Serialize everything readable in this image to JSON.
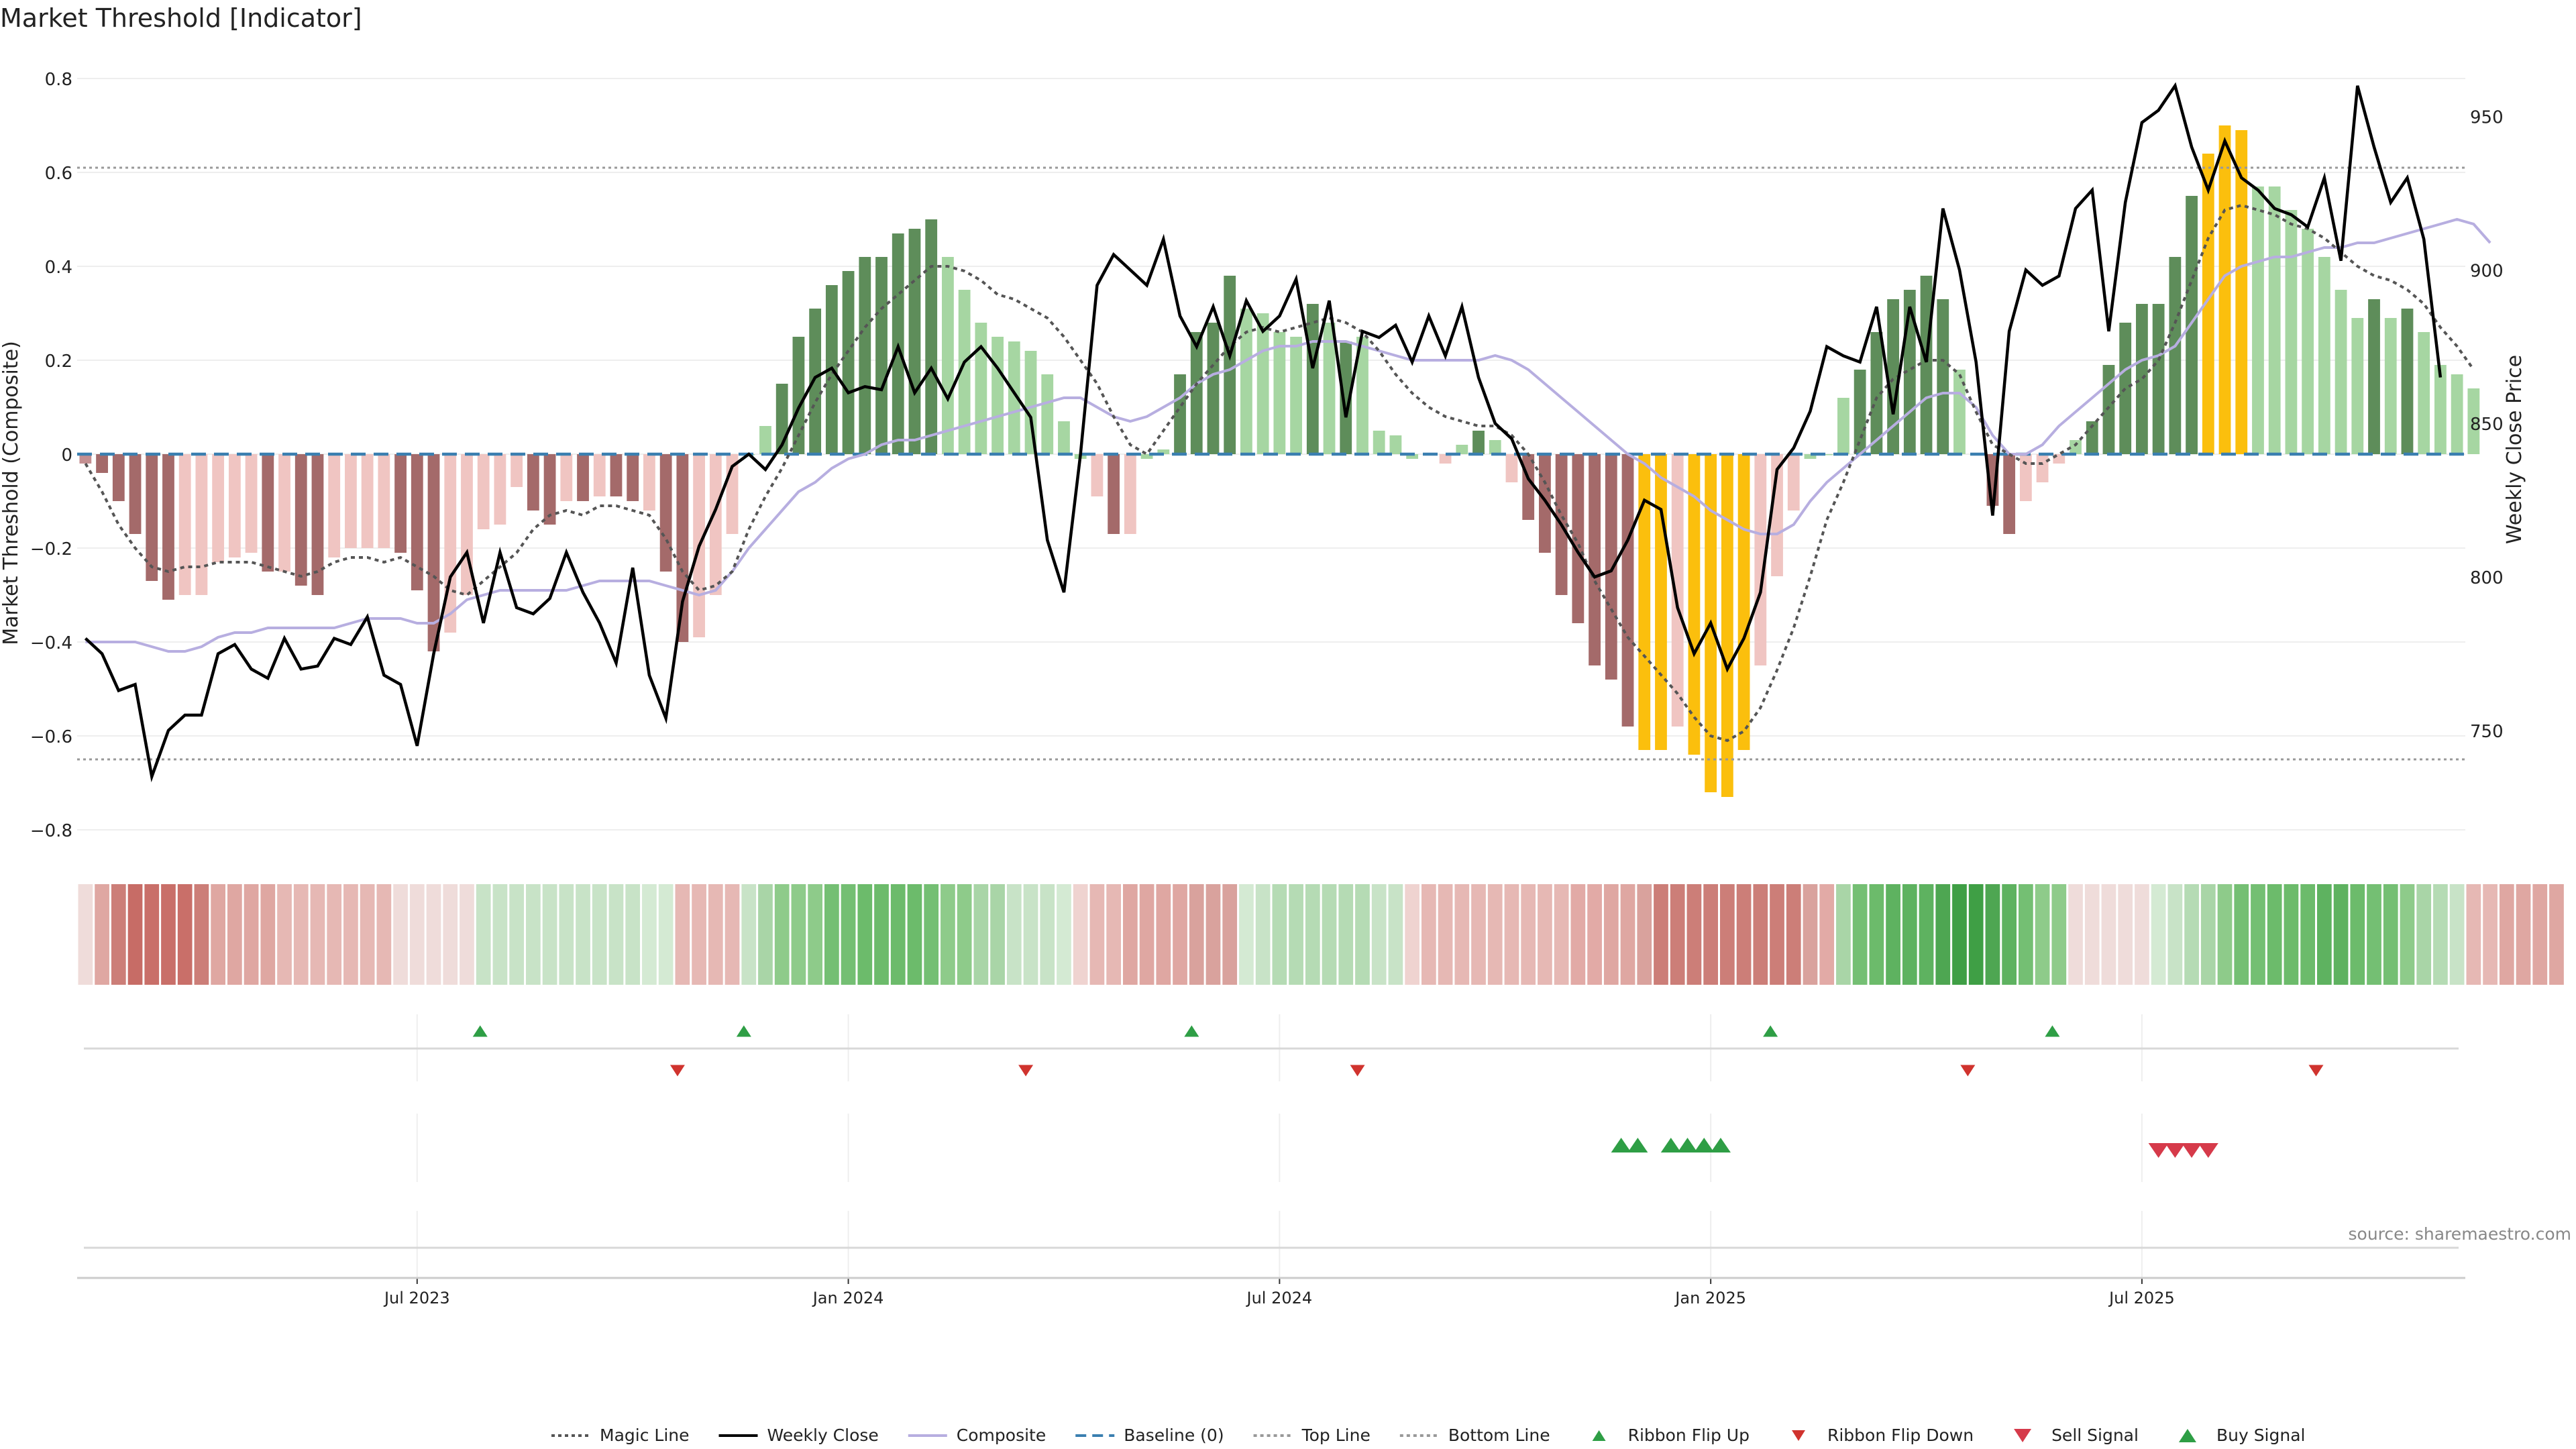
{
  "chart_data": {
    "type": "bar",
    "title": "Market Threshold [Indicator]",
    "ylabel_left": "Market Threshold (Composite)",
    "ylabel_right": "Weekly Close Price",
    "source": "source: sharemaestro.com",
    "ylim_left": [
      -0.85,
      0.85
    ],
    "ylim_right": [
      710,
      970
    ],
    "left_ticks": [
      0.8,
      0.6,
      0.4,
      0.2,
      0,
      -0.2,
      -0.4,
      -0.6,
      -0.8
    ],
    "left_tick_labels": [
      "0.8",
      "0.6",
      "0.4",
      "0.2",
      "0",
      "−0.2",
      "−0.4",
      "−0.6",
      "−0.8"
    ],
    "right_ticks": [
      950,
      900,
      850,
      800,
      750
    ],
    "right_tick_labels": [
      "950",
      "900",
      "850",
      "800",
      "750"
    ],
    "x_range": [
      0,
      144
    ],
    "x_ticks": [
      20.5,
      46.5,
      72.5,
      98.5,
      124.5
    ],
    "x_tick_labels": [
      "Jul 2023",
      "Jan 2024",
      "Jul 2024",
      "Jan 2025",
      "Jul 2025"
    ],
    "top_line": 0.61,
    "bottom_line": -0.65,
    "baseline": 0,
    "composite": [
      -0.02,
      -0.04,
      -0.1,
      -0.17,
      -0.27,
      -0.31,
      -0.3,
      -0.3,
      -0.23,
      -0.22,
      -0.21,
      -0.25,
      -0.25,
      -0.28,
      -0.3,
      -0.22,
      -0.2,
      -0.2,
      -0.2,
      -0.21,
      -0.29,
      -0.42,
      -0.38,
      -0.3,
      -0.16,
      -0.15,
      -0.07,
      -0.12,
      -0.15,
      -0.1,
      -0.1,
      -0.09,
      -0.09,
      -0.1,
      -0.12,
      -0.25,
      -0.4,
      -0.39,
      -0.3,
      -0.17,
      0.0,
      0.06,
      0.15,
      0.25,
      0.31,
      0.36,
      0.39,
      0.42,
      0.42,
      0.47,
      0.48,
      0.5,
      0.42,
      0.35,
      0.28,
      0.25,
      0.24,
      0.22,
      0.17,
      0.07,
      -0.01,
      -0.09,
      -0.17,
      -0.17,
      -0.01,
      0.01,
      0.17,
      0.26,
      0.28,
      0.38,
      0.31,
      0.3,
      0.26,
      0.25,
      0.32,
      0.28,
      0.24,
      0.25,
      0.05,
      0.04,
      -0.01,
      0.0,
      -0.02,
      0.02,
      0.05,
      0.03,
      -0.06,
      -0.14,
      -0.21,
      -0.3,
      -0.36,
      -0.45,
      -0.48,
      -0.58,
      -0.63,
      -0.63,
      -0.58,
      -0.64,
      -0.72,
      -0.73,
      -0.63,
      -0.45,
      -0.26,
      -0.12,
      -0.01,
      0.0,
      0.12,
      0.18,
      0.26,
      0.33,
      0.35,
      0.38,
      0.33,
      0.18,
      0.0,
      -0.11,
      -0.17,
      -0.1,
      -0.06,
      -0.02,
      0.03,
      0.07,
      0.19,
      0.28,
      0.32,
      0.32,
      0.42,
      0.55,
      0.64,
      0.7,
      0.69,
      0.57,
      0.57,
      0.52,
      0.48,
      0.42,
      0.35,
      0.29,
      0.33,
      0.29,
      0.31,
      0.26,
      0.19,
      0.17,
      0.14
    ],
    "bar_colors": [
      "#c48f91",
      "#a46a6a",
      "#a46a6a",
      "#a46a6a",
      "#a46a6a",
      "#a46a6a",
      "#f0c5c2",
      "#f0c5c2",
      "#f0c5c2",
      "#f0c5c2",
      "#f0c5c2",
      "#a46a6a",
      "#f0c5c2",
      "#a46a6a",
      "#a46a6a",
      "#f0c5c2",
      "#f0c5c2",
      "#f0c5c2",
      "#f0c5c2",
      "#a46a6a",
      "#a46a6a",
      "#a46a6a",
      "#f0c5c2",
      "#f0c5c2",
      "#f0c5c2",
      "#f0c5c2",
      "#f0c5c2",
      "#a46a6a",
      "#a46a6a",
      "#f0c5c2",
      "#a46a6a",
      "#f0c5c2",
      "#a46a6a",
      "#a46a6a",
      "#f0c5c2",
      "#a46a6a",
      "#a46a6a",
      "#f0c5c2",
      "#f0c5c2",
      "#f0c5c2",
      "#a6d6a2",
      "#a6d6a2",
      "#5e8d5a",
      "#5e8d5a",
      "#5e8d5a",
      "#5e8d5a",
      "#5e8d5a",
      "#5e8d5a",
      "#5e8d5a",
      "#5e8d5a",
      "#5e8d5a",
      "#5e8d5a",
      "#a6d6a2",
      "#a6d6a2",
      "#a6d6a2",
      "#a6d6a2",
      "#a6d6a2",
      "#a6d6a2",
      "#a6d6a2",
      "#a6d6a2",
      "#a6d6a2",
      "#f0c5c2",
      "#a46a6a",
      "#f0c5c2",
      "#a6d6a2",
      "#a6d6a2",
      "#5e8d5a",
      "#5e8d5a",
      "#5e8d5a",
      "#5e8d5a",
      "#a6d6a2",
      "#a6d6a2",
      "#a6d6a2",
      "#a6d6a2",
      "#5e8d5a",
      "#a6d6a2",
      "#5e8d5a",
      "#a6d6a2",
      "#a6d6a2",
      "#a6d6a2",
      "#a6d6a2",
      "#a6d6a2",
      "#f0c5c2",
      "#a6d6a2",
      "#5e8d5a",
      "#a6d6a2",
      "#f0c5c2",
      "#a46a6a",
      "#a46a6a",
      "#a46a6a",
      "#a46a6a",
      "#a46a6a",
      "#a46a6a",
      "#a46a6a",
      "#fbbf0d",
      "#fbbf0d",
      "#f0c5c2",
      "#fbbf0d",
      "#fbbf0d",
      "#fbbf0d",
      "#fbbf0d",
      "#f0c5c2",
      "#f0c5c2",
      "#f0c5c2",
      "#a6d6a2",
      "#a6d6a2",
      "#a6d6a2",
      "#5e8d5a",
      "#5e8d5a",
      "#5e8d5a",
      "#5e8d5a",
      "#5e8d5a",
      "#5e8d5a",
      "#a6d6a2",
      "#a6d6a2",
      "#a46a6a",
      "#a46a6a",
      "#f0c5c2",
      "#f0c5c2",
      "#f0c5c2",
      "#a6d6a2",
      "#5e8d5a",
      "#5e8d5a",
      "#5e8d5a",
      "#5e8d5a",
      "#5e8d5a",
      "#5e8d5a",
      "#5e8d5a",
      "#fbbf0d",
      "#fbbf0d",
      "#fbbf0d",
      "#a6d6a2",
      "#a6d6a2",
      "#a6d6a2",
      "#a6d6a2",
      "#a6d6a2",
      "#a6d6a2",
      "#a6d6a2",
      "#5e8d5a",
      "#a6d6a2",
      "#5e8d5a",
      "#a6d6a2",
      "#a6d6a2",
      "#a6d6a2",
      "#a6d6a2"
    ],
    "weekly_close": [
      780,
      775,
      763,
      765,
      735,
      750,
      755,
      755,
      775,
      778,
      770,
      767,
      780,
      770,
      771,
      780,
      778,
      787,
      768,
      765,
      745,
      775,
      800,
      808,
      785,
      808,
      790,
      788,
      793,
      808,
      795,
      785,
      772,
      803,
      768,
      754,
      792,
      810,
      822,
      836,
      840,
      835,
      843,
      855,
      865,
      868,
      860,
      862,
      861,
      875,
      860,
      868,
      858,
      870,
      875,
      868,
      860,
      852,
      812,
      795,
      840,
      895,
      905,
      900,
      895,
      910,
      885,
      875,
      888,
      872,
      890,
      880,
      885,
      897,
      868,
      890,
      852,
      880,
      878,
      882,
      870,
      885,
      872,
      888,
      865,
      850,
      845,
      832,
      825,
      817,
      808,
      800,
      802,
      812,
      825,
      822,
      790,
      775,
      785,
      770,
      780,
      795,
      835,
      842,
      854,
      875,
      872,
      870,
      888,
      853,
      888,
      870,
      920,
      900,
      870,
      820,
      880,
      900,
      895,
      898,
      920,
      926,
      880,
      922,
      948,
      952,
      960,
      940,
      926,
      942,
      930,
      926,
      920,
      918,
      914,
      930,
      903,
      960,
      940,
      922,
      930,
      910,
      865
    ],
    "magic_line": [
      -0.02,
      -0.08,
      -0.15,
      -0.2,
      -0.24,
      -0.25,
      -0.24,
      -0.24,
      -0.23,
      -0.23,
      -0.23,
      -0.24,
      -0.25,
      -0.26,
      -0.25,
      -0.23,
      -0.22,
      -0.22,
      -0.23,
      -0.22,
      -0.24,
      -0.26,
      -0.29,
      -0.3,
      -0.27,
      -0.24,
      -0.21,
      -0.16,
      -0.13,
      -0.12,
      -0.13,
      -0.11,
      -0.11,
      -0.12,
      -0.13,
      -0.18,
      -0.25,
      -0.29,
      -0.28,
      -0.25,
      -0.16,
      -0.09,
      -0.03,
      0.04,
      0.11,
      0.17,
      0.22,
      0.27,
      0.31,
      0.34,
      0.37,
      0.4,
      0.4,
      0.39,
      0.37,
      0.34,
      0.33,
      0.31,
      0.29,
      0.25,
      0.2,
      0.15,
      0.08,
      0.02,
      0.0,
      0.05,
      0.1,
      0.15,
      0.19,
      0.23,
      0.26,
      0.27,
      0.26,
      0.27,
      0.28,
      0.29,
      0.28,
      0.26,
      0.22,
      0.17,
      0.13,
      0.1,
      0.08,
      0.07,
      0.06,
      0.06,
      0.04,
      0.0,
      -0.06,
      -0.13,
      -0.19,
      -0.27,
      -0.33,
      -0.39,
      -0.43,
      -0.47,
      -0.51,
      -0.56,
      -0.6,
      -0.61,
      -0.59,
      -0.54,
      -0.46,
      -0.37,
      -0.26,
      -0.14,
      -0.06,
      0.03,
      0.12,
      0.16,
      0.18,
      0.2,
      0.2,
      0.17,
      0.09,
      0.02,
      0.0,
      -0.02,
      -0.02,
      0.0,
      0.02,
      0.06,
      0.1,
      0.14,
      0.16,
      0.2,
      0.28,
      0.37,
      0.46,
      0.52,
      0.53,
      0.52,
      0.51,
      0.49,
      0.48,
      0.46,
      0.43,
      0.4,
      0.38,
      0.37,
      0.35,
      0.32,
      0.27,
      0.23,
      0.18
    ],
    "composite_line": [
      -0.4,
      -0.4,
      -0.4,
      -0.4,
      -0.41,
      -0.42,
      -0.42,
      -0.41,
      -0.39,
      -0.38,
      -0.38,
      -0.37,
      -0.37,
      -0.37,
      -0.37,
      -0.37,
      -0.36,
      -0.35,
      -0.35,
      -0.35,
      -0.36,
      -0.36,
      -0.34,
      -0.31,
      -0.3,
      -0.29,
      -0.29,
      -0.29,
      -0.29,
      -0.29,
      -0.28,
      -0.27,
      -0.27,
      -0.27,
      -0.27,
      -0.28,
      -0.29,
      -0.3,
      -0.29,
      -0.25,
      -0.2,
      -0.16,
      -0.12,
      -0.08,
      -0.06,
      -0.03,
      -0.01,
      0.0,
      0.02,
      0.03,
      0.03,
      0.04,
      0.05,
      0.06,
      0.07,
      0.08,
      0.09,
      0.1,
      0.11,
      0.12,
      0.12,
      0.1,
      0.08,
      0.07,
      0.08,
      0.1,
      0.12,
      0.15,
      0.17,
      0.18,
      0.2,
      0.22,
      0.23,
      0.23,
      0.24,
      0.24,
      0.24,
      0.23,
      0.22,
      0.21,
      0.2,
      0.2,
      0.2,
      0.2,
      0.2,
      0.21,
      0.2,
      0.18,
      0.15,
      0.12,
      0.09,
      0.06,
      0.03,
      0.0,
      -0.02,
      -0.05,
      -0.07,
      -0.09,
      -0.12,
      -0.14,
      -0.16,
      -0.17,
      -0.17,
      -0.15,
      -0.1,
      -0.06,
      -0.03,
      0.0,
      0.03,
      0.06,
      0.09,
      0.12,
      0.13,
      0.13,
      0.1,
      0.04,
      0.0,
      0.0,
      0.02,
      0.06,
      0.09,
      0.12,
      0.15,
      0.18,
      0.2,
      0.21,
      0.23,
      0.28,
      0.33,
      0.38,
      0.4,
      0.41,
      0.42,
      0.42,
      0.43,
      0.44,
      0.44,
      0.45,
      0.45,
      0.46,
      0.47,
      0.48,
      0.49,
      0.5,
      0.49,
      0.45
    ],
    "ribbon_colors": [
      "#efdcda",
      "#dfa7a2",
      "#cc7e78",
      "#c76c66",
      "#c96f69",
      "#c96f69",
      "#c96f69",
      "#cc7e78",
      "#dfa7a2",
      "#dfa7a2",
      "#dfa7a2",
      "#dfa7a2",
      "#e6b8b4",
      "#e6b8b4",
      "#e6b8b4",
      "#e6b8b4",
      "#e6b8b4",
      "#e6b8b4",
      "#e6b8b4",
      "#efdcda",
      "#efdcda",
      "#efdcda",
      "#efdcda",
      "#efdcda",
      "#c8e3c7",
      "#c8e3c7",
      "#c8e3c7",
      "#c8e3c7",
      "#c8e3c7",
      "#c8e3c7",
      "#c8e3c7",
      "#c8e3c7",
      "#c8e3c7",
      "#c8e3c7",
      "#d4ead3",
      "#d4ead3",
      "#e6b8b4",
      "#e6b8b4",
      "#e6b8b4",
      "#e6b8b4",
      "#c8e3c7",
      "#a9d5a7",
      "#8ecb8a",
      "#8ecb8a",
      "#8ecb8a",
      "#74bf73",
      "#74bf73",
      "#6cbb6b",
      "#6cbb6b",
      "#6cbb6b",
      "#6cbb6b",
      "#74bf73",
      "#8ecb8a",
      "#8ecb8a",
      "#a9d5a7",
      "#a9d5a7",
      "#c8e3c7",
      "#c8e3c7",
      "#c8e3c7",
      "#d4ead3",
      "#efd3d0",
      "#e6b8b4",
      "#e6b8b4",
      "#dfa7a2",
      "#dfa7a2",
      "#dfa7a2",
      "#dfa7a2",
      "#d9a29d",
      "#d9a29d",
      "#d9a29d",
      "#d4ead3",
      "#c8e3c7",
      "#b5dbb4",
      "#b5dbb4",
      "#b5dbb4",
      "#b5dbb4",
      "#b5dbb4",
      "#b5dbb4",
      "#c8e3c7",
      "#c8e3c7",
      "#efd3d0",
      "#e6b8b4",
      "#e6b8b4",
      "#e6b8b4",
      "#e6b8b4",
      "#e6b8b4",
      "#e6b8b4",
      "#e6b8b4",
      "#e6b8b4",
      "#e6b8b4",
      "#e2aaa6",
      "#e2aaa6",
      "#dfa7a2",
      "#dfa7a2",
      "#d9a29d",
      "#cc7e78",
      "#cc7e78",
      "#cc7e78",
      "#cc7e78",
      "#cc7e78",
      "#cc7e78",
      "#cc7e78",
      "#cc7e78",
      "#cc7e78",
      "#d9a29d",
      "#e2aaa6",
      "#a9d5a7",
      "#74bf73",
      "#6cbb6b",
      "#5eb260",
      "#5eb260",
      "#5eb260",
      "#4ea652",
      "#3f9f45",
      "#3f9f45",
      "#4ea652",
      "#5eb260",
      "#74bf73",
      "#8ecb8a",
      "#8ecb8a",
      "#efdcda",
      "#efdcda",
      "#efdcda",
      "#efdcda",
      "#efdcda",
      "#d4ead3",
      "#c8e3c7",
      "#b5dbb4",
      "#a9d5a7",
      "#8ecb8a",
      "#74bf73",
      "#74bf73",
      "#6cbb6b",
      "#6cbb6b",
      "#6cbb6b",
      "#5eb260",
      "#5eb260",
      "#6cbb6b",
      "#74bf73",
      "#74bf73",
      "#8ecb8a",
      "#a9d5a7",
      "#b5dbb4",
      "#c8e3c7",
      "#e6b8b4",
      "#e6b8b4",
      "#dfa7a2",
      "#dfa7a2",
      "#dfa7a2",
      "#dfa7a2"
    ],
    "ribbon_flip_up": [
      24.3,
      40.2,
      67.2,
      102.1,
      119.1
    ],
    "ribbon_flip_down": [
      36.2,
      57.2,
      77.2,
      114.0,
      135.0
    ],
    "buy_signals": [
      93.1,
      94.1,
      96.1,
      97.1,
      98.1,
      99.1
    ],
    "sell_signals": [
      125.5,
      126.5,
      127.5,
      128.5
    ],
    "legend": [
      {
        "label": "Magic Line",
        "kind": "dotted",
        "color": "#555555"
      },
      {
        "label": "Weekly Close",
        "kind": "solid",
        "color": "#000000"
      },
      {
        "label": "Composite",
        "kind": "solid",
        "color": "#b7aee0"
      },
      {
        "label": "Baseline (0)",
        "kind": "dashed",
        "color": "#3a7fb0"
      },
      {
        "label": "Top Line",
        "kind": "dotted",
        "color": "#999999"
      },
      {
        "label": "Bottom Line",
        "kind": "dotted",
        "color": "#999999"
      },
      {
        "label": "Ribbon Flip Up",
        "kind": "tri-up-small",
        "color": "#2e9e45"
      },
      {
        "label": "Ribbon Flip Down",
        "kind": "tri-down-small",
        "color": "#d0332e"
      },
      {
        "label": "Sell Signal",
        "kind": "tri-down",
        "color": "#d63a4a"
      },
      {
        "label": "Buy Signal",
        "kind": "tri-up",
        "color": "#2e9e45"
      }
    ]
  }
}
